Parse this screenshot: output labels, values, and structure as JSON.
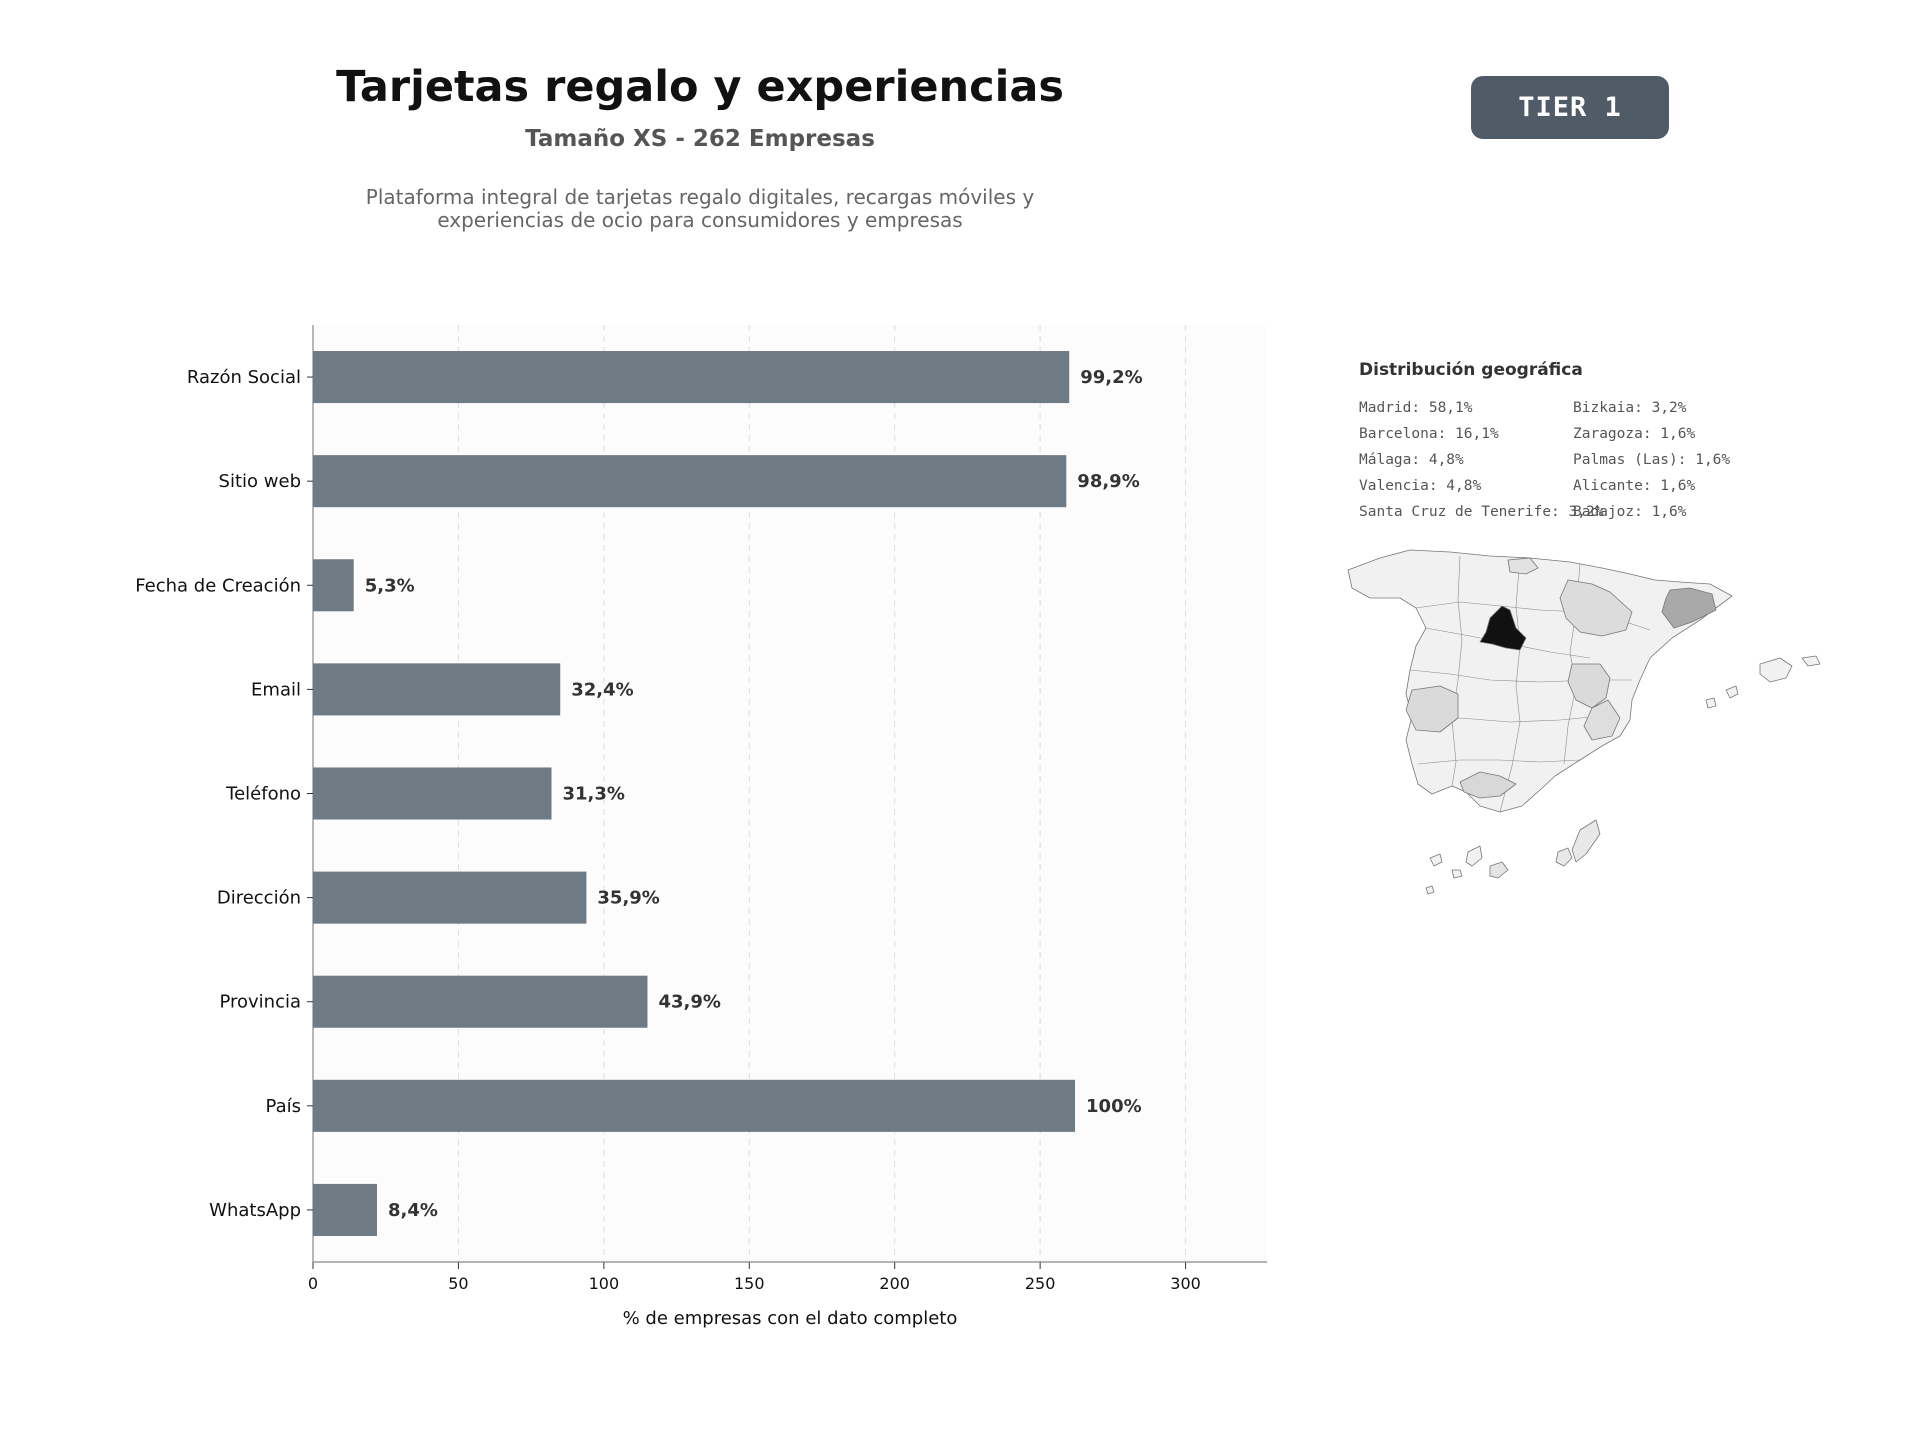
{
  "header": {
    "title": "Tarjetas regalo y experiencias",
    "subtitle": "Tamaño XS - 262 Empresas",
    "description_line1": "Plataforma integral de tarjetas regalo digitales, recargas móviles y",
    "description_line2": "experiencias de ocio para consumidores y empresas"
  },
  "badge": {
    "label": "TIER 1",
    "color": "#4f5b67"
  },
  "chart_data": {
    "type": "bar",
    "orientation": "horizontal",
    "categories": [
      "Razón Social",
      "Sitio web",
      "Fecha de Creación",
      "Email",
      "Teléfono",
      "Dirección",
      "Provincia",
      "País",
      "WhatsApp"
    ],
    "values": [
      260,
      259,
      14,
      85,
      82,
      94,
      115,
      262,
      22
    ],
    "data_labels": [
      "99,2%",
      "98,9%",
      "5,3%",
      "32,4%",
      "31,3%",
      "35,9%",
      "43,9%",
      "100%",
      "8,4%"
    ],
    "xlabel": "% de empresas con el dato completo",
    "ylabel": "",
    "xlim": [
      0,
      328
    ],
    "xticks": [
      0,
      50,
      100,
      150,
      200,
      250,
      300
    ],
    "grid": "vertical dashed",
    "bar_color": "#6e7a84"
  },
  "geo": {
    "title": "Distribución geográfica",
    "items": [
      {
        "label": "Madrid: 58,1%",
        "region": "madrid",
        "share": 58.1
      },
      {
        "label": "Barcelona: 16,1%",
        "region": "barcelona",
        "share": 16.1
      },
      {
        "label": "Málaga: 4,8%",
        "region": "malaga",
        "share": 4.8
      },
      {
        "label": "Valencia: 4,8%",
        "region": "valencia",
        "share": 4.8
      },
      {
        "label": "Santa Cruz de Tenerife: 3,2%",
        "region": "tenerife",
        "share": 3.2
      },
      {
        "label": "Bizkaia: 3,2%",
        "region": "bizkaia",
        "share": 3.2
      },
      {
        "label": "Zaragoza: 1,6%",
        "region": "zaragoza",
        "share": 1.6
      },
      {
        "label": "Palmas (Las): 1,6%",
        "region": "laspalmas",
        "share": 1.6
      },
      {
        "label": "Alicante: 1,6%",
        "region": "alicante",
        "share": 1.6
      },
      {
        "label": "Badajoz: 1,6%",
        "region": "badajoz",
        "share": 1.6
      }
    ]
  }
}
